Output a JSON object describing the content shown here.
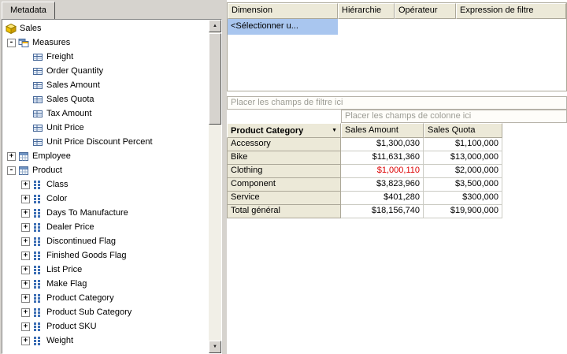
{
  "colors": {
    "window_bg": "#d6d3ce",
    "header_bg": "#ece9d8",
    "selection_bg": "#a9c6ef",
    "grid_border": "#aca899",
    "drop_text": "#9c9c94",
    "negative_value": "#dd0000"
  },
  "icons": {
    "plus": "+",
    "minus": "-",
    "dropdown_arrow": "▼",
    "scroll_up": "▲",
    "scroll_down": "▼"
  },
  "left_panel": {
    "tab_label": "Metadata",
    "tree": {
      "items": [
        {
          "label": "Sales",
          "icon": "cube",
          "depth": 0,
          "expander": "none"
        },
        {
          "label": "Measures",
          "icon": "measures",
          "depth": 1,
          "expander": "minus"
        },
        {
          "label": "Freight",
          "icon": "measure",
          "depth": 2,
          "expander": "none"
        },
        {
          "label": "Order Quantity",
          "icon": "measure",
          "depth": 2,
          "expander": "none"
        },
        {
          "label": "Sales Amount",
          "icon": "measure",
          "depth": 2,
          "expander": "none"
        },
        {
          "label": "Sales Quota",
          "icon": "measure",
          "depth": 2,
          "expander": "none"
        },
        {
          "label": "Tax Amount",
          "icon": "measure",
          "depth": 2,
          "expander": "none"
        },
        {
          "label": "Unit Price",
          "icon": "measure",
          "depth": 2,
          "expander": "none"
        },
        {
          "label": "Unit Price Discount Percent",
          "icon": "measure",
          "depth": 2,
          "expander": "none"
        },
        {
          "label": "Employee",
          "icon": "dimension",
          "depth": 1,
          "expander": "plus"
        },
        {
          "label": "Product",
          "icon": "dimension",
          "depth": 1,
          "expander": "minus"
        },
        {
          "label": "Class",
          "icon": "attribute",
          "depth": 2,
          "expander": "plus"
        },
        {
          "label": "Color",
          "icon": "attribute",
          "depth": 2,
          "expander": "plus"
        },
        {
          "label": "Days To Manufacture",
          "icon": "attribute",
          "depth": 2,
          "expander": "plus"
        },
        {
          "label": "Dealer Price",
          "icon": "attribute",
          "depth": 2,
          "expander": "plus"
        },
        {
          "label": "Discontinued Flag",
          "icon": "attribute",
          "depth": 2,
          "expander": "plus"
        },
        {
          "label": "Finished Goods Flag",
          "icon": "attribute",
          "depth": 2,
          "expander": "plus"
        },
        {
          "label": "List Price",
          "icon": "attribute",
          "depth": 2,
          "expander": "plus"
        },
        {
          "label": "Make Flag",
          "icon": "attribute",
          "depth": 2,
          "expander": "plus"
        },
        {
          "label": "Product Category",
          "icon": "attribute",
          "depth": 2,
          "expander": "plus"
        },
        {
          "label": "Product Sub Category",
          "icon": "attribute",
          "depth": 2,
          "expander": "plus"
        },
        {
          "label": "Product SKU",
          "icon": "attribute",
          "depth": 2,
          "expander": "plus"
        },
        {
          "label": "Weight",
          "icon": "attribute",
          "depth": 2,
          "expander": "plus"
        }
      ]
    }
  },
  "filter_grid": {
    "columns": [
      "Dimension",
      "Hiérarchie",
      "Opérateur",
      "Expression de filtre"
    ],
    "row": {
      "dimension": "<Sélectionner u...",
      "hierarchie": "",
      "operateur": "",
      "expression": ""
    }
  },
  "pivot": {
    "drop_filter_label": "Placer les champs de filtre ici",
    "drop_column_label": "Placer les champs de colonne ici",
    "row_field": "Product Category",
    "value_columns": [
      "Sales Amount",
      "Sales Quota"
    ],
    "rows": [
      {
        "label": "Accessory",
        "sales_amount": "$1,300,030",
        "sales_quota": "$1,100,000"
      },
      {
        "label": "Bike",
        "sales_amount": "$11,631,360",
        "sales_quota": "$13,000,000"
      },
      {
        "label": "Clothing",
        "sales_amount": "$1,000,110",
        "sales_quota": "$2,000,000",
        "sales_amount_red": true
      },
      {
        "label": "Component",
        "sales_amount": "$3,823,960",
        "sales_quota": "$3,500,000"
      },
      {
        "label": "Service",
        "sales_amount": "$401,280",
        "sales_quota": "$300,000"
      },
      {
        "label": "Total général",
        "sales_amount": "$18,156,740",
        "sales_quota": "$19,900,000"
      }
    ]
  }
}
